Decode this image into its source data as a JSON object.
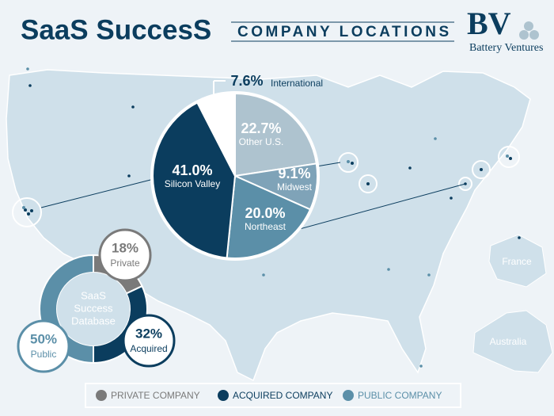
{
  "title": "SaaS SuccesS",
  "subtitle": "COMPANY LOCATIONS",
  "logo": {
    "mark": "BV",
    "name": "Battery Ventures"
  },
  "map_labels": [
    "France",
    "Australia"
  ],
  "legend": [
    {
      "label": "PRIVATE COMPANY",
      "color": "#7a7a7a"
    },
    {
      "label": "ACQUIRED COMPANY",
      "color": "#0b3d5e"
    },
    {
      "label": "PUBLIC COMPANY",
      "color": "#5b8fa8"
    }
  ],
  "chart_data": [
    {
      "type": "pie",
      "categories": [
        "Other U.S.",
        "Midwest",
        "Northeast",
        "Silicon Valley",
        "International"
      ],
      "values": [
        22.7,
        9.1,
        20.0,
        41.0,
        7.6
      ],
      "value_labels": [
        "22.7%",
        "9.1%",
        "20.0%",
        "41.0%",
        "7.6%"
      ],
      "colors": [
        "#aec3cf",
        "#7fa3b8",
        "#5b8fa8",
        "#0b3d5e",
        "#ffffff"
      ]
    },
    {
      "type": "donut",
      "center_label": [
        "SaaS",
        "Success",
        "Database"
      ],
      "categories": [
        "Private",
        "Acquired",
        "Public"
      ],
      "values": [
        18,
        32,
        50
      ],
      "value_labels": [
        "18%",
        "32%",
        "50%"
      ],
      "colors": [
        "#7a7a7a",
        "#0b3d5e",
        "#5b8fa8"
      ]
    }
  ]
}
